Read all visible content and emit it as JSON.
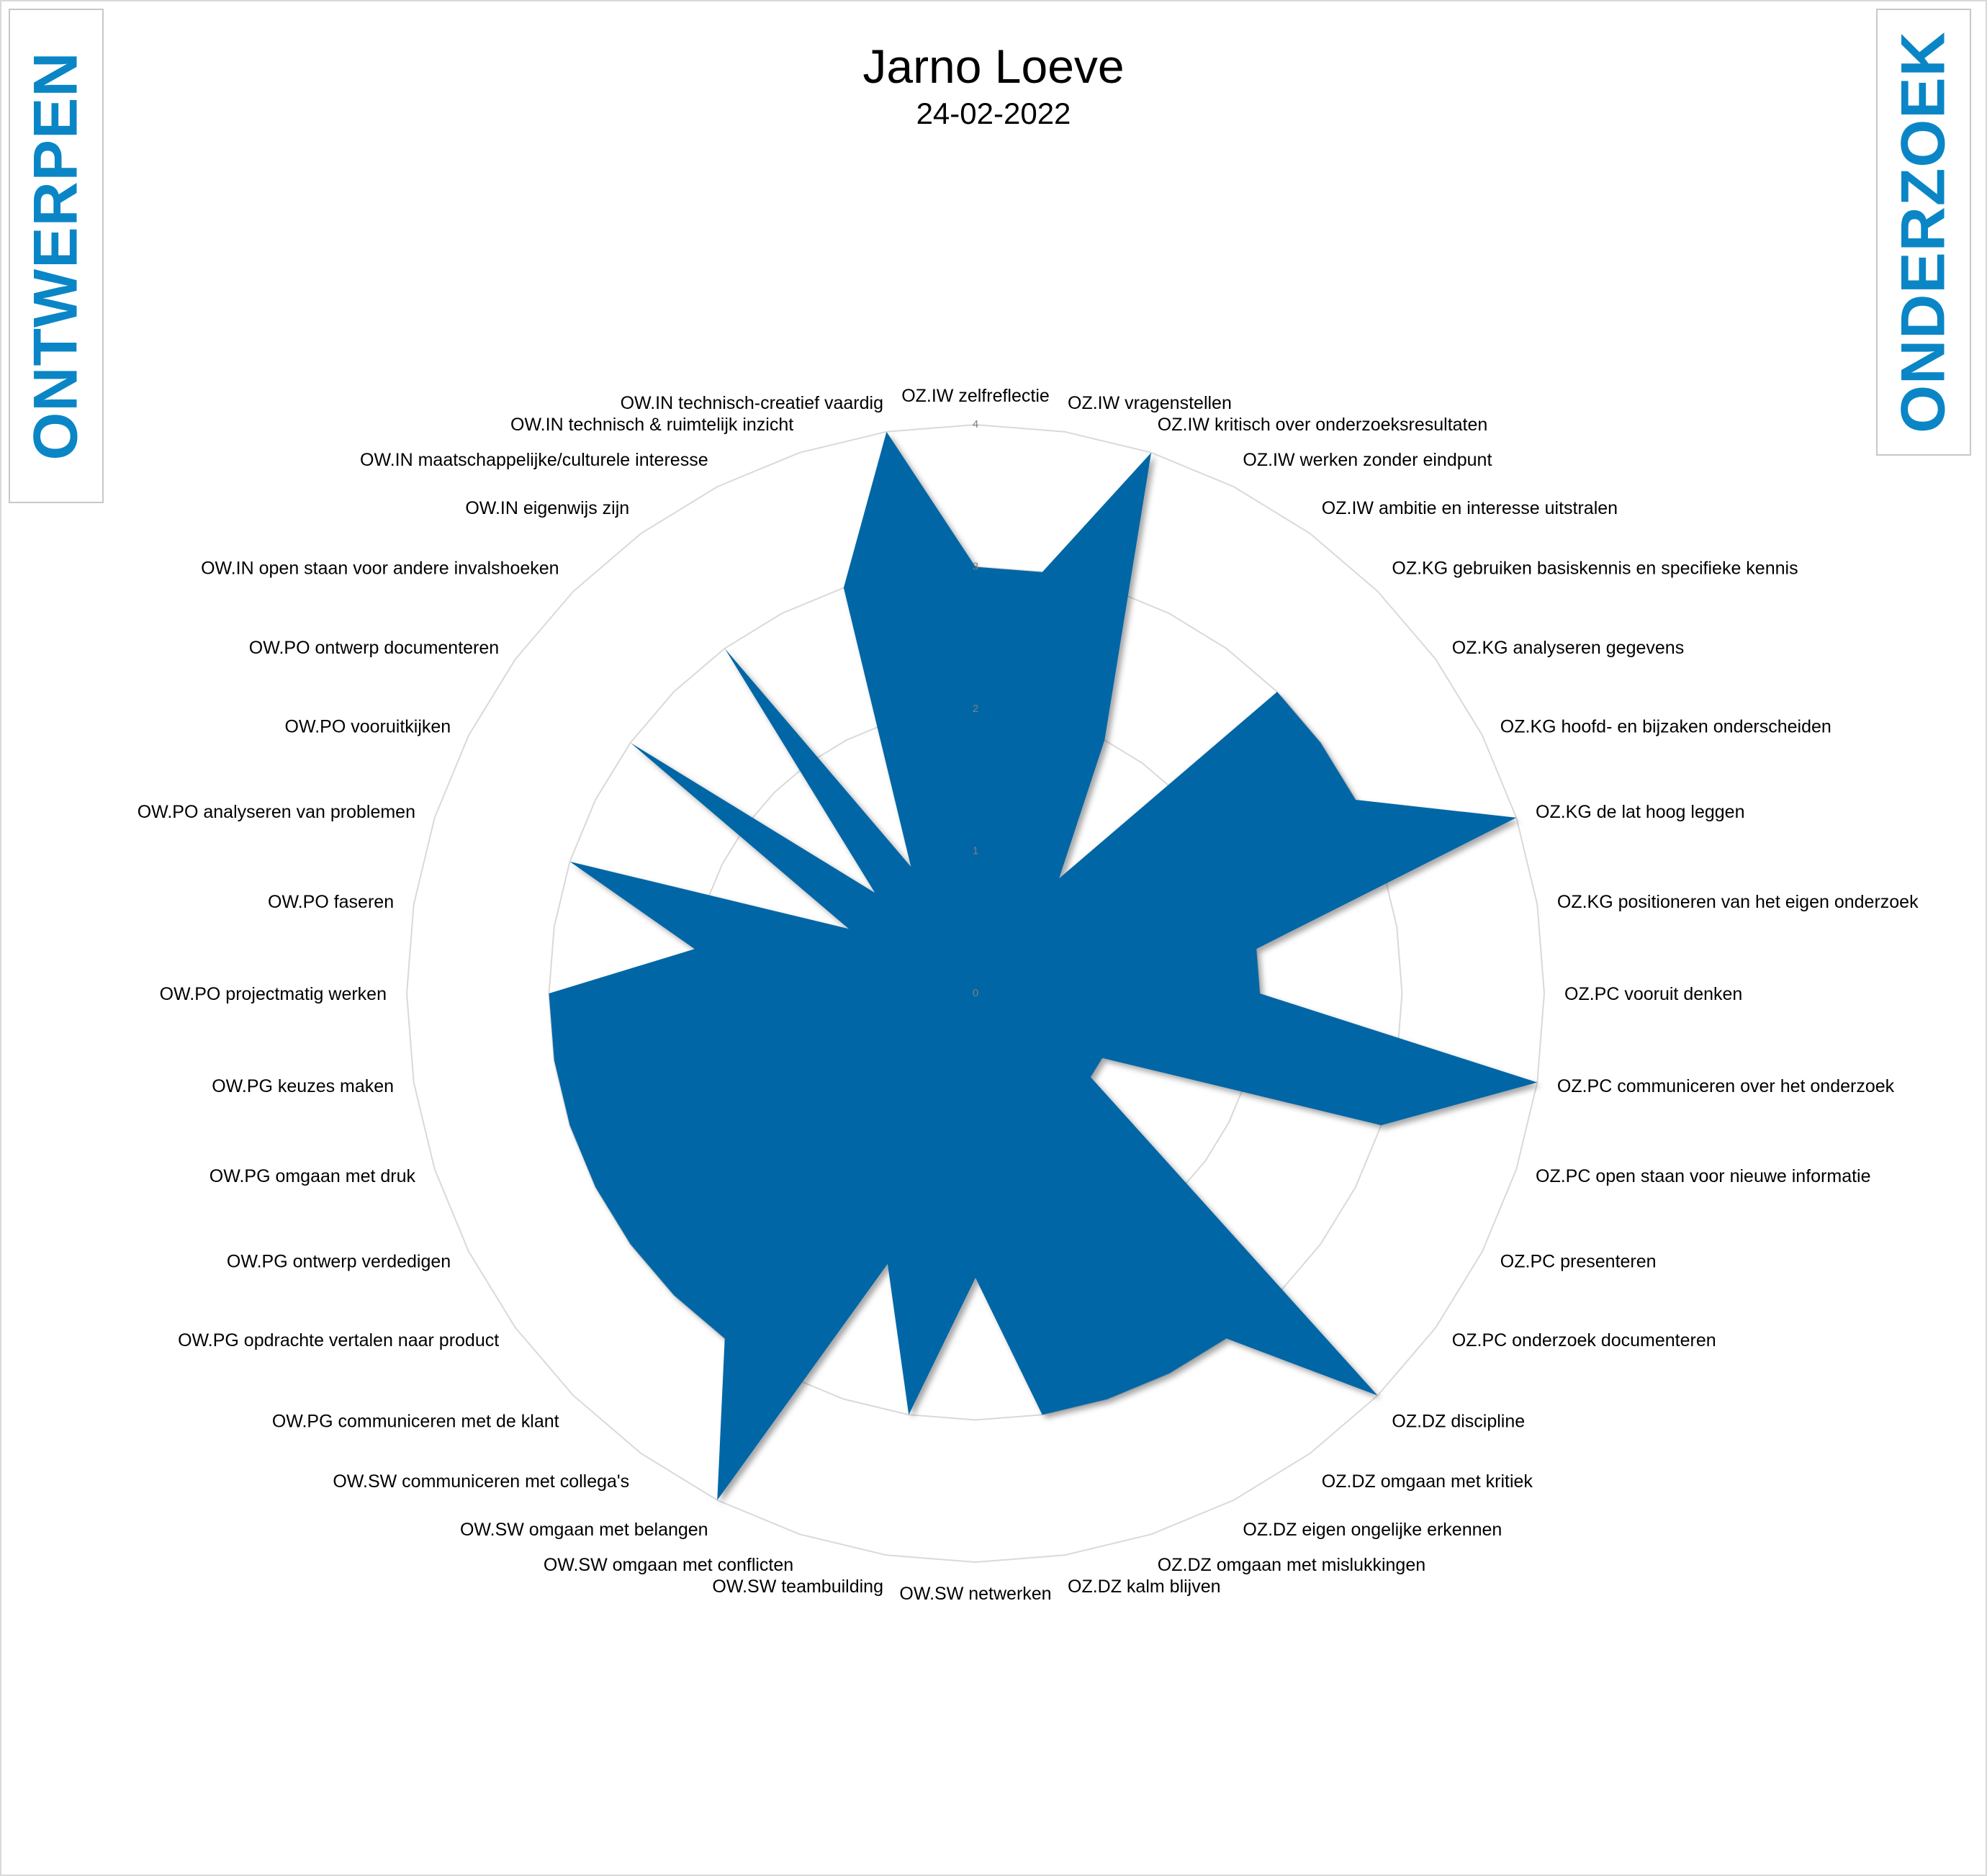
{
  "sidebar_left": {
    "label": "ONTWERPEN",
    "color": "#0a86c6"
  },
  "sidebar_right": {
    "label": "ONDERZOEK",
    "color": "#0a86c6"
  },
  "chart_data": {
    "type": "radar",
    "title": "Jarno Loeve",
    "subtitle": "24-02-2022",
    "range": [
      0,
      4
    ],
    "grid": true,
    "ticks": [
      "0",
      "1",
      "2",
      "3",
      "4"
    ],
    "fill_color": "#0066a6",
    "grid_color": "#d9d9d9",
    "categories": [
      "OZ.IW zelfreflectie",
      "OZ.IW vragenstellen",
      "OZ.IW kritisch over onderzoeksresultaten",
      "OZ.IW werken zonder eindpunt",
      "OZ.IW ambitie en interesse uitstralen",
      "OZ.KG gebruiken basiskennis en specifieke kennis",
      "OZ.KG analyseren gegevens",
      "OZ.KG hoofd- en bijzaken onderscheiden",
      "OZ.KG de lat hoog leggen",
      "OZ.KG positioneren van het eigen onderzoek",
      "OZ.PC vooruit denken",
      "OZ.PC communiceren over het onderzoek",
      "OZ.PC open staan voor nieuwe informatie",
      "OZ.PC presenteren",
      "OZ.PC onderzoek documenteren",
      "OZ.DZ discipline",
      "OZ.DZ omgaan met kritiek",
      "OZ.DZ eigen ongelijke erkennen",
      "OZ.DZ omgaan met mislukkingen",
      "OZ.DZ kalm blijven",
      "OW.SW netwerken",
      "OW.SW teambuilding",
      "OW.SW omgaan met conflicten",
      "OW.SW omgaan met belangen",
      "OW.SW communiceren met collega's",
      "OW.PG communiceren met de klant",
      "OW.PG opdrachte vertalen naar product",
      "OW.PG ontwerp verdedigen",
      "OW.PG omgaan met druk",
      "OW.PG keuzes maken",
      "OW.PO projectmatig werken",
      "OW.PO faseren",
      "OW.PO analyseren van problemen",
      "OW.PO vooruitkijken",
      "OW.PO ontwerp documenteren",
      "OW.IN open staan voor andere invalshoeken",
      "OW.IN eigenwijs zijn",
      "OW.IN maatschappelijke/culturele interesse",
      "OW.IN technisch & ruimtelijk inzicht",
      "OW.IN technisch-creatief vaardig"
    ],
    "series": [
      {
        "values": [
          3,
          3,
          4,
          2,
          1,
          3,
          3,
          3,
          4,
          2,
          2,
          4,
          3,
          1,
          1,
          4,
          3,
          3,
          3,
          3,
          2,
          3,
          2,
          4,
          3,
          3,
          3,
          3,
          3,
          3,
          3,
          2,
          3,
          1,
          3,
          1,
          3,
          1,
          3,
          4
        ]
      }
    ]
  }
}
